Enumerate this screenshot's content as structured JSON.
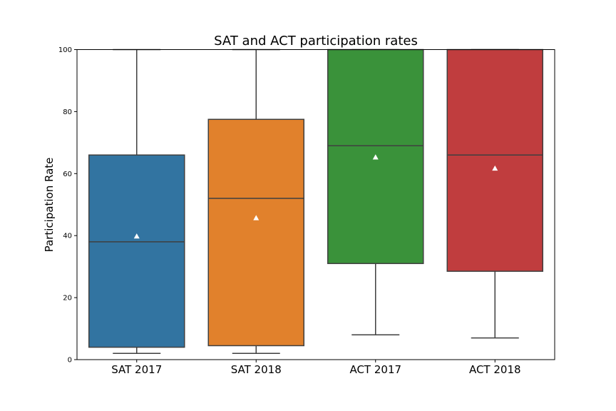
{
  "chart_data": {
    "type": "box",
    "title": "SAT and ACT participation rates",
    "xlabel": "",
    "ylabel": "Participation Rate",
    "ylim": [
      0,
      100
    ],
    "yticks": [
      "0",
      "20",
      "40",
      "60",
      "80",
      "100"
    ],
    "grid": false,
    "categories": [
      "SAT 2017",
      "SAT 2018",
      "ACT 2017",
      "ACT 2018"
    ],
    "boxes": [
      {
        "category": "SAT 2017",
        "whisker_low": 2,
        "q1": 4,
        "median": 38,
        "q3": 66,
        "whisker_high": 100,
        "mean": 39.8,
        "color": "#3274a1"
      },
      {
        "category": "SAT 2018",
        "whisker_low": 2,
        "q1": 4.5,
        "median": 52,
        "q3": 77.5,
        "whisker_high": 100,
        "mean": 45.7,
        "color": "#e1812c"
      },
      {
        "category": "ACT 2017",
        "whisker_low": 8,
        "q1": 31,
        "median": 69,
        "q3": 100,
        "whisker_high": 100,
        "mean": 65.3,
        "color": "#3a923a"
      },
      {
        "category": "ACT 2018",
        "whisker_low": 7,
        "q1": 28.5,
        "median": 66,
        "q3": 100,
        "whisker_high": 100,
        "mean": 61.7,
        "color": "#c03d3e"
      }
    ],
    "line_color": "#3f3f3f",
    "mean_marker_color": "#ffffff"
  }
}
